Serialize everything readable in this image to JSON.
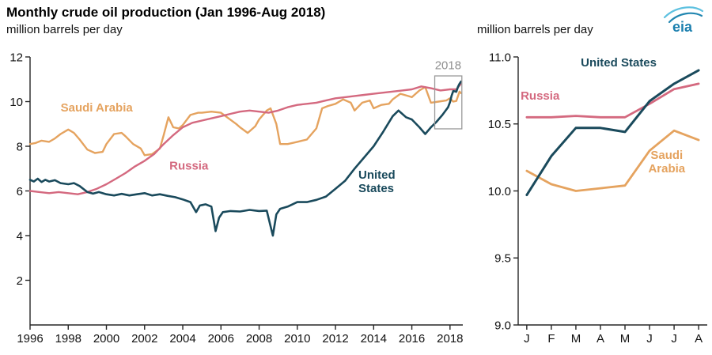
{
  "header": {
    "title": "Monthly crude oil production (Jan 1996-Aug 2018)",
    "subtitle_left": "million barrels per day",
    "subtitle_right": "million barrels per day",
    "logo_text": "eia"
  },
  "colors": {
    "united_states": "#1a4a5c",
    "russia": "#d4697f",
    "saudi_arabia": "#e5a35f",
    "annotation": "#8f8f8f",
    "axis": "#262626",
    "logo_blue": "#1b7fae",
    "logo_light": "#5ec1e0"
  },
  "chart_data": [
    {
      "type": "line",
      "title": "Monthly crude oil production (Jan 1996-Aug 2018)",
      "ylabel": "million barrels per day",
      "xlim": [
        1996,
        2018.67
      ],
      "ylim": [
        0,
        12
      ],
      "grid": false,
      "yticks": [
        {
          "v": 2,
          "t": "2"
        },
        {
          "v": 4,
          "t": "4"
        },
        {
          "v": 6,
          "t": "6"
        },
        {
          "v": 8,
          "t": "8"
        },
        {
          "v": 10,
          "t": "10"
        },
        {
          "v": 12,
          "t": "12"
        }
      ],
      "xticks": [
        {
          "v": 1996,
          "t": "1996"
        },
        {
          "v": 1998,
          "t": "1998"
        },
        {
          "v": 2000,
          "t": "2000"
        },
        {
          "v": 2002,
          "t": "2002"
        },
        {
          "v": 2004,
          "t": "2004"
        },
        {
          "v": 2006,
          "t": "2006"
        },
        {
          "v": 2008,
          "t": "2008"
        },
        {
          "v": 2010,
          "t": "2010"
        },
        {
          "v": 2012,
          "t": "2012"
        },
        {
          "v": 2014,
          "t": "2014"
        },
        {
          "v": 2016,
          "t": "2016"
        },
        {
          "v": 2018,
          "t": "2018"
        }
      ],
      "series": [
        {
          "name": "Saudi Arabia",
          "color": "#e5a35f",
          "width": 2.4,
          "points": [
            [
              1996,
              8.1
            ],
            [
              1996.3,
              8.15
            ],
            [
              1996.6,
              8.25
            ],
            [
              1997,
              8.2
            ],
            [
              1997.3,
              8.35
            ],
            [
              1997.6,
              8.55
            ],
            [
              1998,
              8.75
            ],
            [
              1998.3,
              8.6
            ],
            [
              1998.6,
              8.3
            ],
            [
              1999,
              7.85
            ],
            [
              1999.4,
              7.7
            ],
            [
              1999.8,
              7.75
            ],
            [
              2000,
              8.1
            ],
            [
              2000.4,
              8.55
            ],
            [
              2000.8,
              8.6
            ],
            [
              2001,
              8.45
            ],
            [
              2001.4,
              8.1
            ],
            [
              2001.8,
              7.9
            ],
            [
              2002,
              7.6
            ],
            [
              2002.4,
              7.65
            ],
            [
              2002.8,
              7.9
            ],
            [
              2003,
              8.5
            ],
            [
              2003.25,
              9.3
            ],
            [
              2003.5,
              8.85
            ],
            [
              2003.8,
              8.8
            ],
            [
              2004,
              8.95
            ],
            [
              2004.4,
              9.4
            ],
            [
              2004.8,
              9.5
            ],
            [
              2005,
              9.5
            ],
            [
              2005.5,
              9.55
            ],
            [
              2006,
              9.5
            ],
            [
              2006.4,
              9.25
            ],
            [
              2006.8,
              9.0
            ],
            [
              2007,
              8.85
            ],
            [
              2007.4,
              8.6
            ],
            [
              2007.8,
              8.9
            ],
            [
              2008,
              9.2
            ],
            [
              2008.4,
              9.6
            ],
            [
              2008.6,
              9.7
            ],
            [
              2008.9,
              9.0
            ],
            [
              2009.1,
              8.1
            ],
            [
              2009.5,
              8.1
            ],
            [
              2010,
              8.2
            ],
            [
              2010.5,
              8.3
            ],
            [
              2011,
              8.8
            ],
            [
              2011.3,
              9.7
            ],
            [
              2011.6,
              9.8
            ],
            [
              2012,
              9.9
            ],
            [
              2012.4,
              10.1
            ],
            [
              2012.8,
              9.95
            ],
            [
              2013,
              9.6
            ],
            [
              2013.4,
              9.95
            ],
            [
              2013.8,
              10.05
            ],
            [
              2014,
              9.7
            ],
            [
              2014.4,
              9.85
            ],
            [
              2014.8,
              9.9
            ],
            [
              2015,
              10.1
            ],
            [
              2015.4,
              10.35
            ],
            [
              2015.8,
              10.25
            ],
            [
              2016,
              10.2
            ],
            [
              2016.4,
              10.5
            ],
            [
              2016.7,
              10.65
            ],
            [
              2017,
              9.95
            ],
            [
              2017.4,
              10.0
            ],
            [
              2017.8,
              10.05
            ],
            [
              2018,
              10.15
            ],
            [
              2018.17,
              10.0
            ],
            [
              2018.33,
              10.03
            ],
            [
              2018.5,
              10.45
            ],
            [
              2018.58,
              10.38
            ]
          ]
        },
        {
          "name": "Russia",
          "color": "#d4697f",
          "width": 2.4,
          "points": [
            [
              1996,
              6.0
            ],
            [
              1996.5,
              5.95
            ],
            [
              1997,
              5.9
            ],
            [
              1997.5,
              5.95
            ],
            [
              1998,
              5.9
            ],
            [
              1998.5,
              5.85
            ],
            [
              1999,
              5.95
            ],
            [
              1999.5,
              6.1
            ],
            [
              2000,
              6.3
            ],
            [
              2000.5,
              6.55
            ],
            [
              2001,
              6.8
            ],
            [
              2001.5,
              7.1
            ],
            [
              2002,
              7.35
            ],
            [
              2002.5,
              7.65
            ],
            [
              2003,
              8.1
            ],
            [
              2003.5,
              8.5
            ],
            [
              2004,
              8.85
            ],
            [
              2004.5,
              9.05
            ],
            [
              2005,
              9.15
            ],
            [
              2005.5,
              9.25
            ],
            [
              2006,
              9.35
            ],
            [
              2006.5,
              9.45
            ],
            [
              2007,
              9.55
            ],
            [
              2007.5,
              9.6
            ],
            [
              2008,
              9.55
            ],
            [
              2008.5,
              9.5
            ],
            [
              2009,
              9.6
            ],
            [
              2009.5,
              9.75
            ],
            [
              2010,
              9.85
            ],
            [
              2010.5,
              9.9
            ],
            [
              2011,
              9.95
            ],
            [
              2011.5,
              10.05
            ],
            [
              2012,
              10.15
            ],
            [
              2012.5,
              10.2
            ],
            [
              2013,
              10.25
            ],
            [
              2013.5,
              10.3
            ],
            [
              2014,
              10.35
            ],
            [
              2014.5,
              10.4
            ],
            [
              2015,
              10.45
            ],
            [
              2015.5,
              10.5
            ],
            [
              2016,
              10.55
            ],
            [
              2016.5,
              10.68
            ],
            [
              2017,
              10.6
            ],
            [
              2017.5,
              10.5
            ],
            [
              2018,
              10.55
            ],
            [
              2018.33,
              10.55
            ],
            [
              2018.58,
              10.8
            ]
          ]
        },
        {
          "name": "United States",
          "color": "#1a4a5c",
          "width": 2.6,
          "points": [
            [
              1996,
              6.5
            ],
            [
              1996.2,
              6.42
            ],
            [
              1996.4,
              6.55
            ],
            [
              1996.6,
              6.4
            ],
            [
              1996.8,
              6.5
            ],
            [
              1997,
              6.42
            ],
            [
              1997.3,
              6.48
            ],
            [
              1997.6,
              6.35
            ],
            [
              1998,
              6.3
            ],
            [
              1998.3,
              6.35
            ],
            [
              1998.6,
              6.22
            ],
            [
              1999,
              5.95
            ],
            [
              1999.3,
              5.88
            ],
            [
              1999.6,
              5.95
            ],
            [
              2000,
              5.85
            ],
            [
              2000.4,
              5.8
            ],
            [
              2000.8,
              5.87
            ],
            [
              2001.2,
              5.8
            ],
            [
              2001.6,
              5.85
            ],
            [
              2002,
              5.9
            ],
            [
              2002.4,
              5.8
            ],
            [
              2002.8,
              5.85
            ],
            [
              2003.2,
              5.78
            ],
            [
              2003.6,
              5.72
            ],
            [
              2004,
              5.62
            ],
            [
              2004.4,
              5.5
            ],
            [
              2004.7,
              5.05
            ],
            [
              2004.9,
              5.35
            ],
            [
              2005.2,
              5.4
            ],
            [
              2005.5,
              5.3
            ],
            [
              2005.72,
              4.2
            ],
            [
              2005.9,
              4.8
            ],
            [
              2006.1,
              5.05
            ],
            [
              2006.5,
              5.1
            ],
            [
              2007,
              5.08
            ],
            [
              2007.5,
              5.15
            ],
            [
              2008,
              5.1
            ],
            [
              2008.4,
              5.12
            ],
            [
              2008.72,
              4.0
            ],
            [
              2008.9,
              4.95
            ],
            [
              2009.1,
              5.2
            ],
            [
              2009.5,
              5.3
            ],
            [
              2010,
              5.5
            ],
            [
              2010.5,
              5.5
            ],
            [
              2011,
              5.6
            ],
            [
              2011.5,
              5.75
            ],
            [
              2012,
              6.1
            ],
            [
              2012.5,
              6.45
            ],
            [
              2013,
              7.0
            ],
            [
              2013.5,
              7.5
            ],
            [
              2014,
              8.0
            ],
            [
              2014.5,
              8.65
            ],
            [
              2015,
              9.35
            ],
            [
              2015.3,
              9.6
            ],
            [
              2015.7,
              9.3
            ],
            [
              2016,
              9.2
            ],
            [
              2016.4,
              8.85
            ],
            [
              2016.7,
              8.55
            ],
            [
              2017,
              8.85
            ],
            [
              2017.3,
              9.1
            ],
            [
              2017.6,
              9.4
            ],
            [
              2017.9,
              9.75
            ],
            [
              2018,
              9.97
            ],
            [
              2018.08,
              10.26
            ],
            [
              2018.17,
              10.47
            ],
            [
              2018.25,
              10.46
            ],
            [
              2018.33,
              10.44
            ],
            [
              2018.42,
              10.67
            ],
            [
              2018.5,
              10.8
            ],
            [
              2018.58,
              10.9
            ]
          ]
        }
      ],
      "labels": [
        {
          "lines": [
            "Saudi Arabia"
          ],
          "x": 1997.6,
          "y": 9.55,
          "color": "#e5a35f",
          "anchor": "start"
        },
        {
          "lines": [
            "Russia"
          ],
          "x": 2003.3,
          "y": 6.95,
          "color": "#d4697f",
          "anchor": "start"
        },
        {
          "lines": [
            "United",
            "States"
          ],
          "x": 2013.2,
          "y": 6.55,
          "color": "#1a4a5c",
          "anchor": "start"
        }
      ],
      "annotation_box": {
        "x0": 2017.2,
        "x1": 2018.62,
        "y0": 8.78,
        "y1": 11.15,
        "color": "#9a9a9a",
        "label": "2018",
        "label_x": 2017.9,
        "label_y": 11.45,
        "label_color": "#8f8f8f"
      }
    },
    {
      "type": "line",
      "ylabel": "million barrels per day",
      "categories": [
        "J",
        "F",
        "M",
        "A",
        "M",
        "J",
        "J",
        "A"
      ],
      "xlim": [
        -0.35,
        7.35
      ],
      "ylim": [
        9.0,
        11.0
      ],
      "grid": false,
      "yticks": [
        {
          "v": 9,
          "t": "9.0"
        },
        {
          "v": 9.5,
          "t": "9.5"
        },
        {
          "v": 10,
          "t": "10.0"
        },
        {
          "v": 10.5,
          "t": "10.5"
        },
        {
          "v": 11,
          "t": "11.0"
        }
      ],
      "series": [
        {
          "name": "Saudi Arabia",
          "color": "#e5a35f",
          "width": 2.8,
          "values": [
            10.15,
            10.05,
            10.0,
            10.02,
            10.04,
            10.3,
            10.45,
            10.38
          ]
        },
        {
          "name": "Russia",
          "color": "#d4697f",
          "width": 2.8,
          "values": [
            10.55,
            10.55,
            10.56,
            10.55,
            10.55,
            10.65,
            10.76,
            10.8
          ]
        },
        {
          "name": "United States",
          "color": "#1a4a5c",
          "width": 3,
          "values": [
            9.97,
            10.26,
            10.47,
            10.47,
            10.44,
            10.67,
            10.8,
            10.9
          ]
        }
      ],
      "labels": [
        {
          "lines": [
            "United States"
          ],
          "x": 2.2,
          "y": 10.93,
          "color": "#1a4a5c",
          "anchor": "start"
        },
        {
          "lines": [
            "Russia"
          ],
          "x": -0.25,
          "y": 10.68,
          "color": "#d4697f",
          "anchor": "start"
        },
        {
          "lines": [
            "Saudi",
            "Arabia"
          ],
          "x": 5.7,
          "y": 10.24,
          "color": "#e5a35f",
          "anchor": "middle"
        }
      ]
    }
  ]
}
